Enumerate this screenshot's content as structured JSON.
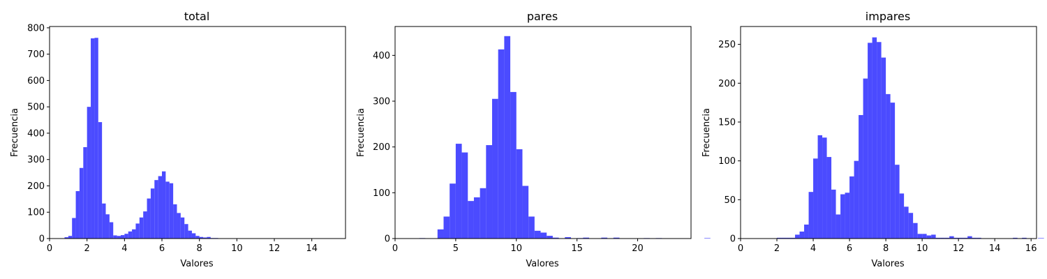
{
  "figure": {
    "xlabel": "Valores",
    "ylabel": "Frecuencia"
  },
  "colors": {
    "bar": "#4b4bff",
    "axes": "#000000"
  },
  "chart_data": [
    {
      "type": "bar",
      "title": "total",
      "xlabel": "Valores",
      "ylabel": "Frecuencia",
      "xlim": [
        0,
        15.8
      ],
      "ylim": [
        0,
        805
      ],
      "xticks": [
        0,
        2,
        4,
        6,
        8,
        10,
        12,
        14
      ],
      "yticks": [
        0,
        100,
        200,
        300,
        400,
        500,
        600,
        700,
        800
      ],
      "bin_width": 0.2,
      "bin_start": 0.8,
      "values": [
        5,
        10,
        78,
        180,
        268,
        347,
        500,
        760,
        762,
        442,
        133,
        92,
        62,
        12,
        10,
        13,
        18,
        27,
        35,
        57,
        80,
        103,
        152,
        190,
        222,
        237,
        255,
        216,
        210,
        130,
        97,
        80,
        55,
        30,
        20,
        10,
        6,
        4,
        6,
        2,
        2,
        1,
        1,
        1,
        1,
        1,
        1,
        1,
        1,
        1,
        1,
        1,
        1,
        1,
        1,
        1,
        1,
        1,
        1,
        1,
        1,
        1,
        1,
        1,
        1,
        1,
        1,
        1,
        1,
        1
      ]
    },
    {
      "type": "bar",
      "title": "pares",
      "xlabel": "Valores",
      "ylabel": "Frecuencia",
      "xlim": [
        0,
        24.4
      ],
      "ylim": [
        0,
        463
      ],
      "xticks": [
        0,
        5,
        10,
        15,
        20
      ],
      "yticks": [
        0,
        100,
        200,
        300,
        400
      ],
      "bin_width": 0.5,
      "bin_start": 2.0,
      "values": [
        1,
        0,
        0,
        20,
        48,
        120,
        207,
        188,
        82,
        90,
        110,
        204,
        305,
        413,
        442,
        320,
        195,
        115,
        48,
        17,
        13,
        6,
        2,
        0,
        3,
        0,
        1,
        2,
        0,
        0,
        2,
        0,
        2,
        0,
        0,
        0,
        0,
        1,
        0,
        1,
        0,
        0,
        0,
        0,
        0,
        0,
        0,
        1,
        0,
        0,
        0,
        0,
        0,
        0,
        0,
        0,
        0,
        0,
        0,
        0,
        0,
        0,
        0,
        0,
        0,
        0,
        0,
        0,
        0,
        0,
        0,
        0,
        0,
        0,
        0,
        0,
        0,
        0,
        0,
        0,
        0,
        0,
        0,
        0,
        0,
        0,
        0,
        0,
        0,
        0,
        0,
        0,
        0,
        0,
        0,
        0,
        0,
        0,
        0,
        0,
        0,
        0,
        1
      ]
    },
    {
      "type": "bar",
      "title": "impares",
      "xlabel": "Valores",
      "ylabel": "Frecuencia",
      "xlim": [
        0,
        16.3
      ],
      "ylim": [
        0,
        273
      ],
      "xticks": [
        0,
        2,
        4,
        6,
        8,
        10,
        12,
        14,
        16
      ],
      "yticks": [
        0,
        50,
        100,
        150,
        200,
        250
      ],
      "bin_width": 0.25,
      "bin_start": 2.0,
      "values": [
        1,
        1,
        1,
        1,
        5,
        9,
        18,
        60,
        103,
        133,
        130,
        105,
        63,
        31,
        57,
        59,
        80,
        100,
        159,
        206,
        252,
        259,
        253,
        233,
        186,
        175,
        95,
        58,
        41,
        33,
        20,
        6,
        6,
        4,
        5,
        1,
        1,
        1,
        3,
        1,
        1,
        1,
        3,
        1,
        1,
        0,
        0,
        0,
        0,
        0,
        0,
        0,
        1,
        0,
        1
      ]
    }
  ],
  "panels_text": [
    {
      "title": "total",
      "xlabel": "Valores",
      "ylabel": "Frecuencia"
    },
    {
      "title": "pares",
      "xlabel": "Valores",
      "ylabel": "Frecuencia"
    },
    {
      "title": "impares",
      "xlabel": "Valores",
      "ylabel": "Frecuencia"
    }
  ]
}
